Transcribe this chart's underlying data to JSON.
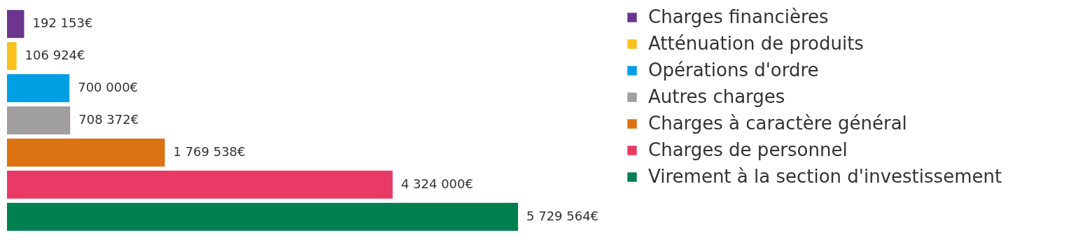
{
  "chart_data": {
    "type": "bar",
    "orientation": "horizontal",
    "categories": [
      null
    ],
    "series": [
      {
        "name": "Charges financières",
        "color": "#6b3590",
        "values": [
          192153
        ],
        "value_labels": [
          "192 153€"
        ]
      },
      {
        "name": "Atténuation de produits",
        "color": "#f9c21a",
        "values": [
          106924
        ],
        "value_labels": [
          "106 924€"
        ]
      },
      {
        "name": "Opérations d'ordre",
        "color": "#009fe3",
        "values": [
          700000
        ],
        "value_labels": [
          "700 000€"
        ]
      },
      {
        "name": "Autres charges",
        "color": "#a19e9f",
        "values": [
          708372
        ],
        "value_labels": [
          "708 372€"
        ]
      },
      {
        "name": "Charges à caractère général",
        "color": "#dc7212",
        "values": [
          1769538
        ],
        "value_labels": [
          "1 769 538€"
        ]
      },
      {
        "name": "Charges de personnel",
        "color": "#e83a65",
        "values": [
          4324000
        ],
        "value_labels": [
          "4 324 000€"
        ]
      },
      {
        "name": "Virement à la section d'investissement",
        "color": "#008050",
        "values": [
          5729564
        ],
        "value_labels": [
          "5 729 564€"
        ]
      }
    ],
    "legend": "right",
    "tick_labels": false
  }
}
